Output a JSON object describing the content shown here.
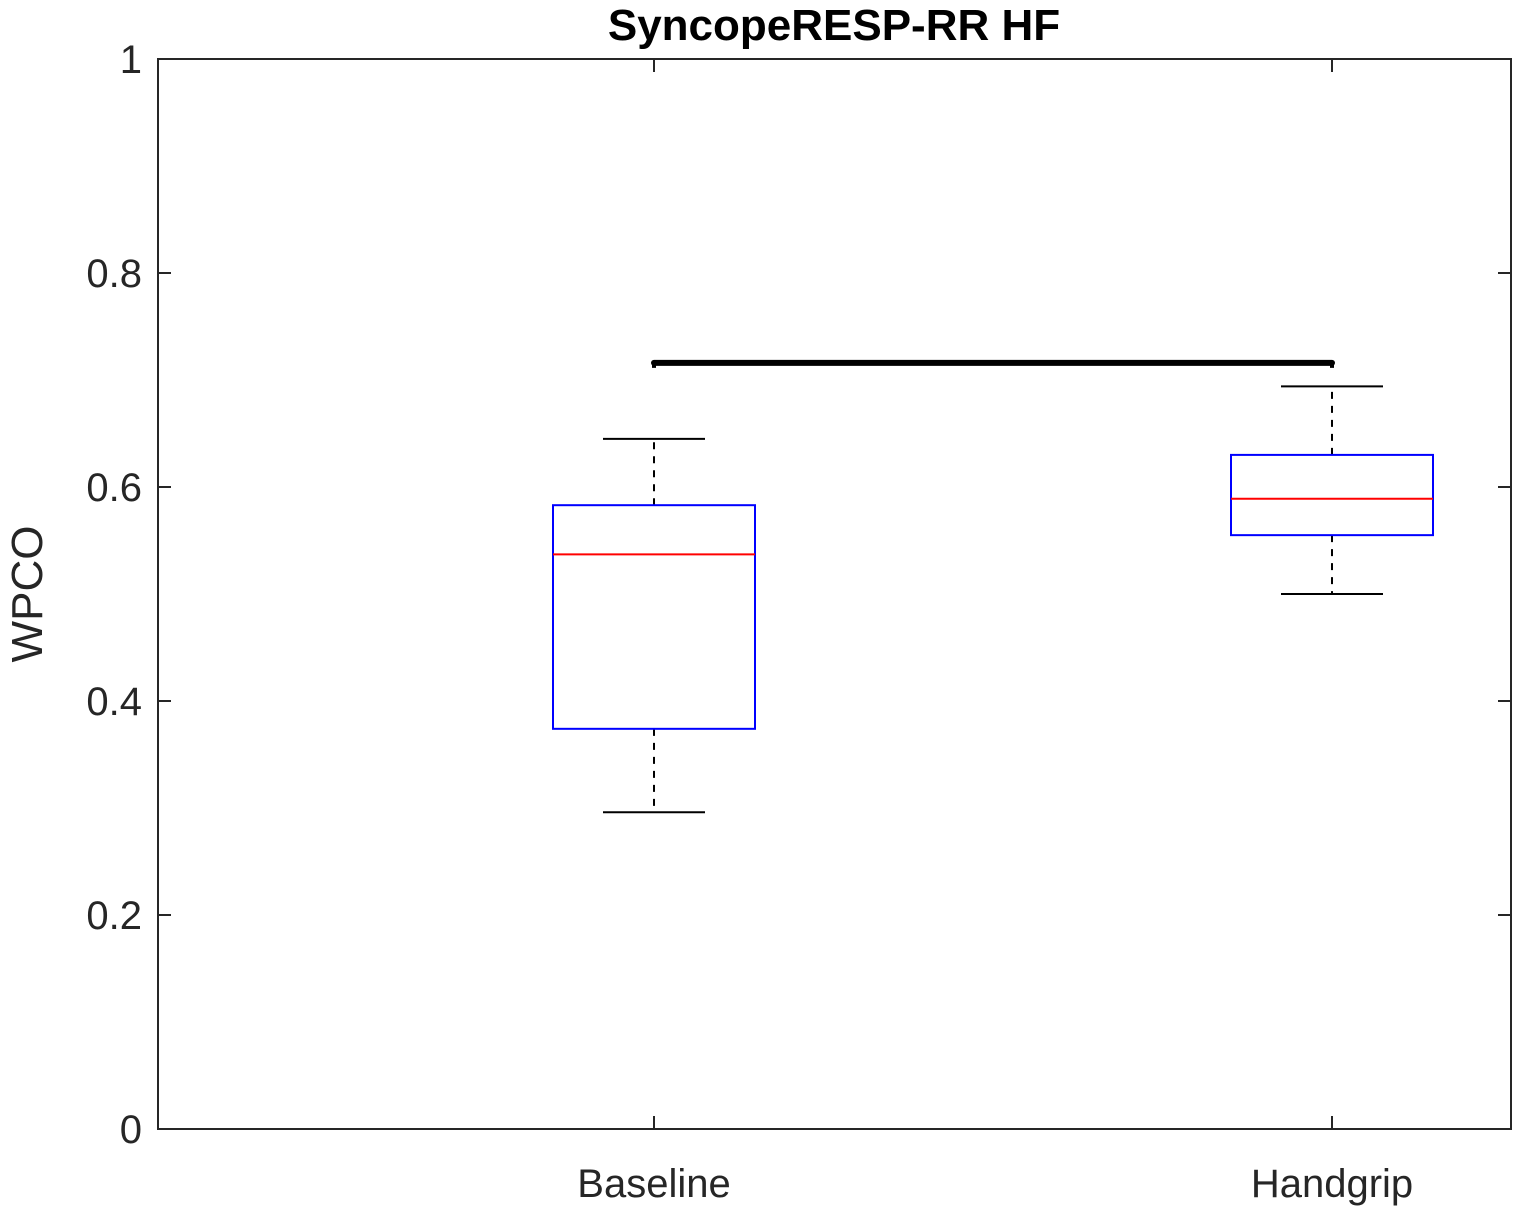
{
  "chart_data": {
    "type": "box",
    "title": "SyncopeRESP-RR HF",
    "xlabel": "",
    "ylabel": "WPCO",
    "ylim": [
      0,
      1
    ],
    "yticks": [
      0,
      0.2,
      0.4,
      0.6,
      0.8,
      1
    ],
    "ytick_labels": [
      "0",
      "0.2",
      "0.4",
      "0.6",
      "0.8",
      "1"
    ],
    "grid": false,
    "categories": [
      "Baseline",
      "Handgrip"
    ],
    "boxes": [
      {
        "category": "Baseline",
        "whisker_low": 0.296,
        "q1": 0.374,
        "median": 0.537,
        "q3": 0.583,
        "whisker_high": 0.645
      },
      {
        "category": "Handgrip",
        "whisker_low": 0.5,
        "q1": 0.555,
        "median": 0.589,
        "q3": 0.63,
        "whisker_high": 0.694
      }
    ],
    "significance_bar": {
      "from": "Baseline",
      "to": "Handgrip",
      "y": 0.716
    },
    "colors": {
      "box": "#0000ff",
      "median": "#ff0000",
      "whisker": "#000000",
      "axes": "#262626",
      "significance": "#000000"
    }
  }
}
